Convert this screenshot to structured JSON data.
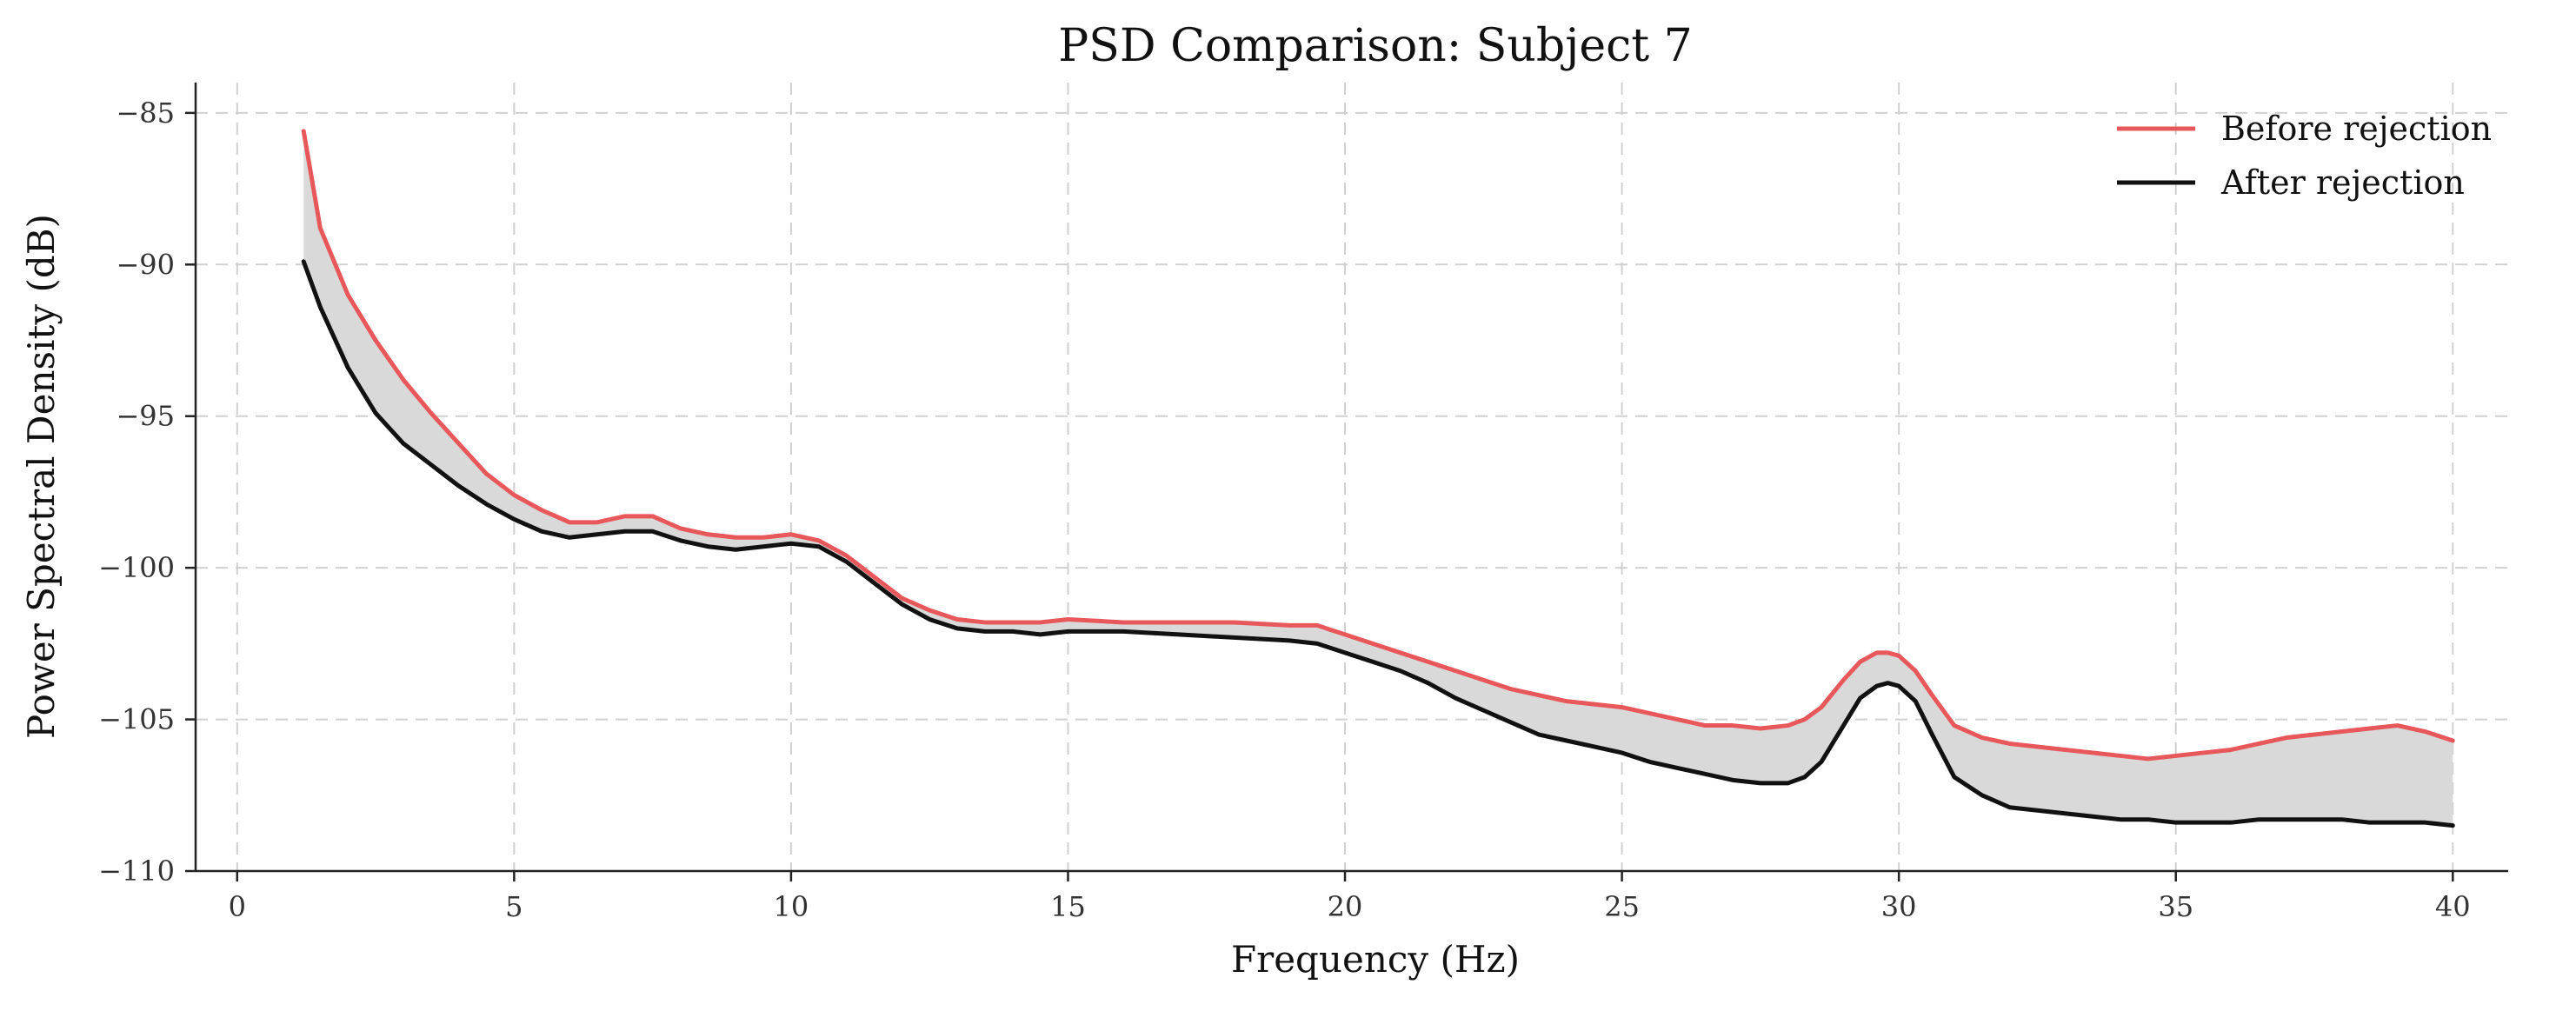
{
  "chart_data": {
    "type": "line",
    "title": "PSD Comparison: Subject 7",
    "xlabel": "Frequency (Hz)",
    "ylabel": "Power Spectral Density (dB)",
    "xlim": [
      -0.75,
      41.0
    ],
    "ylim": [
      -110,
      -84
    ],
    "xticks": [
      0,
      5,
      10,
      15,
      20,
      25,
      30,
      35,
      40
    ],
    "yticks": [
      -85,
      -90,
      -95,
      -100,
      -105,
      -110
    ],
    "xtick_labels": [
      "0",
      "5",
      "10",
      "15",
      "20",
      "25",
      "30",
      "35",
      "40"
    ],
    "ytick_labels": [
      "−85",
      "−90",
      "−95",
      "−100",
      "−105",
      "−110"
    ],
    "grid": true,
    "legend_position": "top-right",
    "fill_between": {
      "color": "#d9d9d9",
      "between": [
        "Before rejection",
        "After rejection"
      ]
    },
    "x": [
      1.2,
      1.5,
      2,
      2.5,
      3,
      3.5,
      4,
      4.5,
      5,
      5.5,
      6,
      6.5,
      7,
      7.5,
      8,
      8.5,
      9,
      9.5,
      10,
      10.5,
      11,
      11.5,
      12,
      12.5,
      13,
      13.5,
      14,
      14.5,
      15,
      16,
      17,
      18,
      19,
      19.5,
      20,
      20.5,
      21,
      21.5,
      22,
      22.5,
      23,
      23.5,
      24,
      24.5,
      25,
      25.5,
      26,
      26.5,
      27,
      27.5,
      28,
      28.3,
      28.6,
      29,
      29.3,
      29.6,
      29.8,
      30,
      30.3,
      30.6,
      31,
      31.5,
      32,
      32.5,
      33,
      33.5,
      34,
      34.5,
      35,
      35.5,
      36,
      36.5,
      37,
      37.5,
      38,
      38.5,
      39,
      39.5,
      40
    ],
    "series": [
      {
        "name": "Before rejection",
        "color": "#e8585a",
        "values": [
          -85.6,
          -88.8,
          -91.0,
          -92.5,
          -93.8,
          -94.9,
          -95.9,
          -96.9,
          -97.6,
          -98.1,
          -98.5,
          -98.5,
          -98.3,
          -98.3,
          -98.7,
          -98.9,
          -99.0,
          -99.0,
          -98.9,
          -99.1,
          -99.6,
          -100.3,
          -101.0,
          -101.4,
          -101.7,
          -101.8,
          -101.8,
          -101.8,
          -101.7,
          -101.8,
          -101.8,
          -101.8,
          -101.9,
          -101.9,
          -102.2,
          -102.5,
          -102.8,
          -103.1,
          -103.4,
          -103.7,
          -104.0,
          -104.2,
          -104.4,
          -104.5,
          -104.6,
          -104.8,
          -105.0,
          -105.2,
          -105.2,
          -105.3,
          -105.2,
          -105.0,
          -104.6,
          -103.7,
          -103.1,
          -102.8,
          -102.8,
          -102.9,
          -103.4,
          -104.2,
          -105.2,
          -105.6,
          -105.8,
          -105.9,
          -106.0,
          -106.1,
          -106.2,
          -106.3,
          -106.2,
          -106.1,
          -106.0,
          -105.8,
          -105.6,
          -105.5,
          -105.4,
          -105.3,
          -105.2,
          -105.4,
          -105.7
        ]
      },
      {
        "name": "After rejection",
        "color": "#111111",
        "values": [
          -89.9,
          -91.4,
          -93.4,
          -94.9,
          -95.9,
          -96.6,
          -97.3,
          -97.9,
          -98.4,
          -98.8,
          -99.0,
          -98.9,
          -98.8,
          -98.8,
          -99.1,
          -99.3,
          -99.4,
          -99.3,
          -99.2,
          -99.3,
          -99.8,
          -100.5,
          -101.2,
          -101.7,
          -102.0,
          -102.1,
          -102.1,
          -102.2,
          -102.1,
          -102.1,
          -102.2,
          -102.3,
          -102.4,
          -102.5,
          -102.8,
          -103.1,
          -103.4,
          -103.8,
          -104.3,
          -104.7,
          -105.1,
          -105.5,
          -105.7,
          -105.9,
          -106.1,
          -106.4,
          -106.6,
          -106.8,
          -107.0,
          -107.1,
          -107.1,
          -106.9,
          -106.4,
          -105.2,
          -104.3,
          -103.9,
          -103.8,
          -103.9,
          -104.4,
          -105.5,
          -106.9,
          -107.5,
          -107.9,
          -108.0,
          -108.1,
          -108.2,
          -108.3,
          -108.3,
          -108.4,
          -108.4,
          -108.4,
          -108.3,
          -108.3,
          -108.3,
          -108.3,
          -108.4,
          -108.4,
          -108.4,
          -108.5
        ]
      }
    ]
  }
}
